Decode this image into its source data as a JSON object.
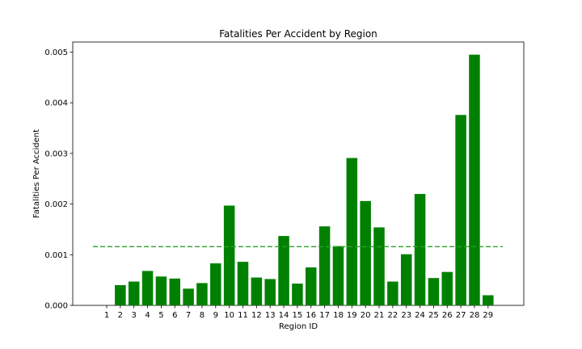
{
  "chart_data": {
    "type": "bar",
    "title": "Fatalities Per Accident by Region",
    "xlabel": "Region ID",
    "ylabel": "Fatalities Per Accident",
    "categories": [
      "1",
      "2",
      "3",
      "4",
      "5",
      "6",
      "7",
      "8",
      "9",
      "10",
      "11",
      "12",
      "13",
      "14",
      "15",
      "16",
      "17",
      "18",
      "19",
      "20",
      "21",
      "22",
      "23",
      "24",
      "25",
      "26",
      "27",
      "28",
      "29"
    ],
    "values": [
      0.0,
      0.0004,
      0.00047,
      0.00068,
      0.00057,
      0.00053,
      0.00033,
      0.00044,
      0.00083,
      0.00197,
      0.00086,
      0.00055,
      0.00052,
      0.00137,
      0.00043,
      0.00075,
      0.00156,
      0.00117,
      0.00291,
      0.00206,
      0.00154,
      0.00047,
      0.00101,
      0.0022,
      0.00054,
      0.00066,
      0.00376,
      0.00495,
      0.0002
    ],
    "bar_color": "#008000",
    "reference_line": {
      "value": 0.00116,
      "style": "dashed",
      "color": "#2ca02c"
    },
    "ylim": [
      0,
      0.0052
    ],
    "yticks": [
      "0.000",
      "0.001",
      "0.002",
      "0.003",
      "0.004",
      "0.005"
    ],
    "grid": false
  }
}
